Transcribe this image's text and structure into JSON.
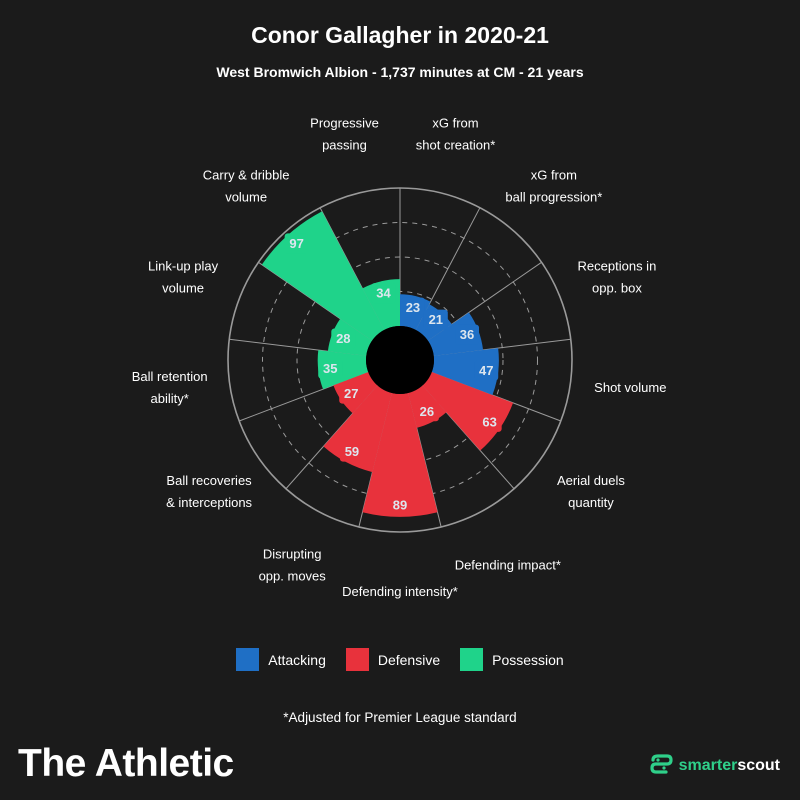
{
  "title": "Conor Gallagher in 2020-21",
  "subtitle": "West Bromwich Albion - 1,737 minutes at CM - 21 years",
  "colors": {
    "background": "#1b1b1b",
    "attacking": "#1f6fc5",
    "defensive": "#e8323c",
    "possession": "#1fd38a",
    "ring": "#9a9a9a"
  },
  "legend": [
    {
      "label": "Attacking",
      "color": "#1f6fc5"
    },
    {
      "label": "Defensive",
      "color": "#e8323c"
    },
    {
      "label": "Possession",
      "color": "#1fd38a"
    }
  ],
  "footnote": "*Adjusted for Premier League standard",
  "brand": "The Athletic",
  "scout_brand": {
    "part1": "smarter",
    "part2": "scout",
    "icon": "smarterscout-logo-icon"
  },
  "chart_data": {
    "type": "radial-bar",
    "scale": [
      0,
      100
    ],
    "grid": true,
    "legend_position": "bottom-center",
    "metrics": [
      {
        "label": [
          "xG from",
          "shot creation*"
        ],
        "value": 23,
        "category": "Attacking"
      },
      {
        "label": [
          "xG from",
          "ball progression*"
        ],
        "value": 21,
        "category": "Attacking"
      },
      {
        "label": [
          "Receptions in",
          "opp. box"
        ],
        "value": 36,
        "category": "Attacking"
      },
      {
        "label": [
          "Shot volume"
        ],
        "value": 47,
        "category": "Attacking"
      },
      {
        "label": [
          "Aerial duels",
          "quantity"
        ],
        "value": 63,
        "category": "Defensive"
      },
      {
        "label": [
          "Defending impact*"
        ],
        "value": 26,
        "category": "Defensive"
      },
      {
        "label": [
          "Defending intensity*"
        ],
        "value": 89,
        "category": "Defensive"
      },
      {
        "label": [
          "Disrupting",
          "opp. moves"
        ],
        "value": 59,
        "category": "Defensive"
      },
      {
        "label": [
          "Ball recoveries",
          "& interceptions"
        ],
        "value": 27,
        "category": "Defensive"
      },
      {
        "label": [
          "Ball retention",
          "ability*"
        ],
        "value": 35,
        "category": "Possession"
      },
      {
        "label": [
          "Link-up play",
          "volume"
        ],
        "value": 28,
        "category": "Possession"
      },
      {
        "label": [
          "Carry & dribble",
          "volume"
        ],
        "value": 97,
        "category": "Possession"
      },
      {
        "label": [
          "Progressive",
          "passing"
        ],
        "value": 34,
        "category": "Possession"
      }
    ]
  }
}
